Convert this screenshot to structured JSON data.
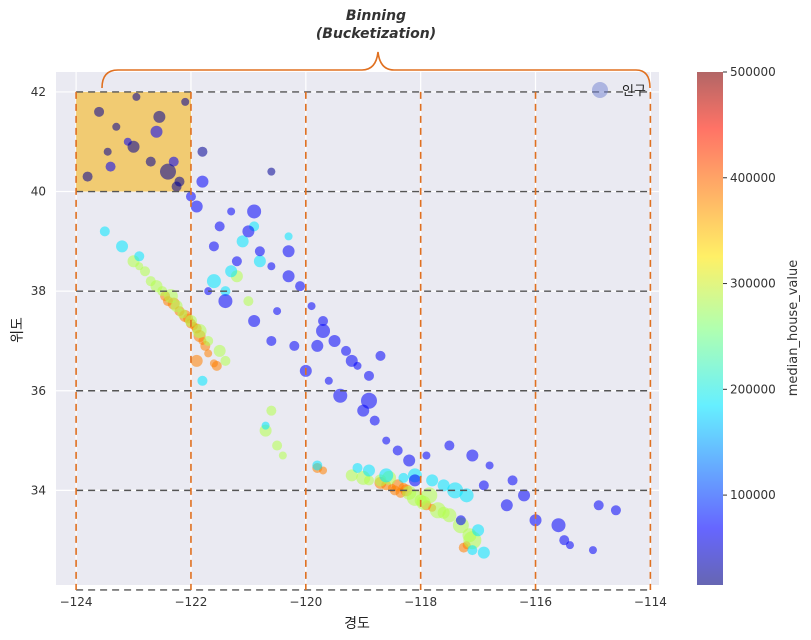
{
  "chart_data": {
    "type": "scatter",
    "xlabel": "경도",
    "ylabel": "위도",
    "xlim": [
      -124.35,
      -113.85
    ],
    "ylim": [
      32.1,
      42.4
    ],
    "xticks": [
      -124,
      -122,
      -120,
      -118,
      -116,
      -114
    ],
    "yticks": [
      34,
      36,
      38,
      40,
      42
    ],
    "xtick_labels": [
      "−124",
      "−122",
      "−120",
      "−118",
      "−116",
      "−114"
    ],
    "ytick_labels": [
      "34",
      "36",
      "38",
      "40",
      "42"
    ],
    "grid": true,
    "legend": {
      "label": "인구",
      "placement": "top-right"
    },
    "colorbar": {
      "label": "median_house_value",
      "min": 15000,
      "max": 500000,
      "ticks": [
        100000,
        200000,
        300000,
        400000,
        500000
      ],
      "tick_labels": [
        "100000",
        "200000",
        "300000",
        "400000",
        "500000"
      ],
      "colormap": "jet"
    },
    "bins": {
      "vertical_lines_x": [
        -124,
        -122,
        -120,
        -118,
        -116,
        -114
      ],
      "horizontal_lines_y": [
        32,
        34,
        36,
        38,
        40,
        42
      ],
      "highlighted_bin": {
        "x": [
          -124,
          -122
        ],
        "y": [
          40,
          42
        ]
      },
      "vertical_line_color": "#e07020",
      "horizontal_line_color": "#555555",
      "highlight_color": "#f2c55c"
    },
    "annotation": {
      "line1": "Binning",
      "line2": "(Bucketization)",
      "color": "#e07020"
    },
    "series": [
      {
        "value_level": 0.75,
        "x": [
          -122.4,
          -122.3,
          -122.2,
          -122.1,
          -122.0,
          -121.95,
          -121.9,
          -121.85,
          -121.8,
          -121.75,
          -121.7,
          -121.9,
          -122.05,
          -121.6,
          -121.55,
          -118.3,
          -118.4,
          -118.45,
          -118.5,
          -118.35,
          -118.25,
          -117.9,
          -117.8,
          -118.6,
          -118.7,
          -119.7,
          -119.8,
          -117.25,
          -117.2,
          -122.45
        ],
        "y": [
          37.8,
          37.75,
          37.6,
          37.5,
          37.35,
          37.3,
          37.25,
          37.1,
          37.0,
          36.9,
          36.75,
          36.6,
          37.45,
          36.55,
          36.5,
          34.05,
          34.1,
          34.0,
          34.05,
          33.95,
          34.0,
          33.7,
          33.65,
          34.1,
          34.15,
          34.4,
          34.45,
          32.85,
          32.9,
          37.9
        ],
        "size": [
          5,
          6,
          5,
          6,
          5,
          4,
          5,
          6,
          4,
          5,
          4,
          6,
          5,
          4,
          5,
          5,
          6,
          5,
          4,
          5,
          6,
          5,
          4,
          5,
          6,
          4,
          5,
          5,
          4,
          5
        ]
      },
      {
        "value_level": 0.55,
        "x": [
          -122.6,
          -122.5,
          -122.35,
          -122.25,
          -122.15,
          -122.0,
          -121.85,
          -121.7,
          -121.5,
          -121.4,
          -122.8,
          -122.9,
          -123.0,
          -122.7,
          -120.5,
          -120.4,
          -119.2,
          -119.0,
          -118.9,
          -118.7,
          -118.2,
          -118.1,
          -118.0,
          -117.95,
          -117.7,
          -117.6,
          -117.5,
          -117.3,
          -117.15,
          -117.1,
          -121.0,
          -121.2,
          -120.6,
          -120.7,
          -118.55,
          -117.85
        ],
        "y": [
          38.1,
          38.0,
          37.9,
          37.7,
          37.55,
          37.4,
          37.2,
          37.0,
          36.8,
          36.6,
          38.4,
          38.5,
          38.6,
          38.2,
          34.9,
          34.7,
          34.3,
          34.25,
          34.2,
          34.2,
          33.95,
          33.85,
          33.8,
          33.75,
          33.6,
          33.55,
          33.5,
          33.3,
          33.1,
          33.0,
          37.8,
          38.3,
          35.6,
          35.2,
          34.25,
          33.9
        ],
        "size": [
          6,
          5,
          7,
          6,
          5,
          6,
          7,
          5,
          6,
          5,
          5,
          4,
          6,
          5,
          5,
          4,
          6,
          7,
          5,
          6,
          7,
          8,
          6,
          7,
          8,
          6,
          7,
          8,
          7,
          9,
          5,
          6,
          5,
          6,
          7,
          8
        ]
      },
      {
        "value_level": 0.35,
        "x": [
          -123.5,
          -123.2,
          -122.9,
          -121.3,
          -121.6,
          -121.1,
          -120.9,
          -120.3,
          -120.8,
          -121.4,
          -119.8,
          -118.9,
          -118.6,
          -118.3,
          -117.6,
          -117.4,
          -117.2,
          -117.0,
          -117.1,
          -116.9,
          -118.1,
          -117.8,
          -119.1,
          -120.7,
          -121.8
        ],
        "y": [
          39.2,
          38.9,
          38.7,
          38.4,
          38.2,
          39.0,
          39.3,
          39.1,
          38.6,
          38.0,
          34.5,
          34.4,
          34.3,
          34.25,
          34.1,
          34.0,
          33.9,
          33.2,
          32.8,
          32.75,
          34.3,
          34.2,
          34.45,
          35.3,
          36.2
        ],
        "size": [
          5,
          6,
          5,
          6,
          7,
          6,
          5,
          4,
          6,
          5,
          5,
          6,
          7,
          5,
          6,
          8,
          7,
          6,
          5,
          6,
          7,
          6,
          5,
          4,
          5
        ]
      },
      {
        "value_level": 0.12,
        "x": [
          -121.5,
          -121.3,
          -121.0,
          -120.8,
          -120.6,
          -120.3,
          -120.1,
          -119.9,
          -119.7,
          -119.5,
          -119.3,
          -119.1,
          -118.9,
          -119.8,
          -120.5,
          -121.2,
          -121.9,
          -122.0,
          -121.4,
          -120.9,
          -120.2,
          -119.6,
          -119.0,
          -118.8,
          -118.6,
          -118.4,
          -118.2,
          -117.9,
          -117.5,
          -117.1,
          -116.8,
          -116.4,
          -116.2,
          -115.6,
          -115.5,
          -115.0,
          -114.6,
          -116.5,
          -117.3,
          -118.1,
          -119.4,
          -120.0,
          -120.6,
          -121.7,
          -122.3,
          -122.6,
          -123.1,
          -123.4,
          -120.3,
          -119.7,
          -118.9,
          -116.9,
          -116.0,
          -115.4,
          -114.9,
          -121.8,
          -120.9,
          -121.6,
          -119.2,
          -118.7
        ],
        "y": [
          39.3,
          39.6,
          39.2,
          38.8,
          38.5,
          38.3,
          38.1,
          37.7,
          37.4,
          37.0,
          36.8,
          36.5,
          36.3,
          36.9,
          37.6,
          38.6,
          39.7,
          39.9,
          37.8,
          37.4,
          36.9,
          36.2,
          35.6,
          35.4,
          35.0,
          34.8,
          34.6,
          34.7,
          34.9,
          34.7,
          34.5,
          34.2,
          33.9,
          33.3,
          33.0,
          32.8,
          33.6,
          33.7,
          33.4,
          34.2,
          35.9,
          36.4,
          37.0,
          38.0,
          40.6,
          41.2,
          41.0,
          40.5,
          38.8,
          37.2,
          35.8,
          34.1,
          33.4,
          32.9,
          33.7,
          40.2,
          39.6,
          38.9,
          36.6,
          36.7
        ],
        "size": [
          5,
          4,
          6,
          5,
          4,
          6,
          5,
          4,
          5,
          6,
          5,
          4,
          5,
          6,
          4,
          5,
          6,
          5,
          7,
          6,
          5,
          4,
          6,
          5,
          4,
          5,
          6,
          4,
          5,
          6,
          4,
          5,
          6,
          7,
          5,
          4,
          5,
          6,
          5,
          6,
          7,
          6,
          5,
          4,
          5,
          6,
          4,
          5,
          6,
          7,
          8,
          5,
          6,
          4,
          5,
          6,
          7,
          5,
          6,
          5
        ]
      },
      {
        "value_level": 0.02,
        "x": [
          -123.6,
          -123.3,
          -123.0,
          -122.7,
          -122.4,
          -122.2,
          -122.1,
          -123.8,
          -122.95,
          -122.55,
          -122.25,
          -123.45,
          -120.6,
          -121.8
        ],
        "y": [
          41.6,
          41.3,
          40.9,
          40.6,
          40.4,
          40.2,
          41.8,
          40.3,
          41.9,
          41.5,
          40.1,
          40.8,
          40.4,
          40.8
        ],
        "size": [
          5,
          4,
          6,
          5,
          8,
          5,
          4,
          5,
          4,
          6,
          5,
          4,
          4,
          5
        ]
      }
    ]
  }
}
